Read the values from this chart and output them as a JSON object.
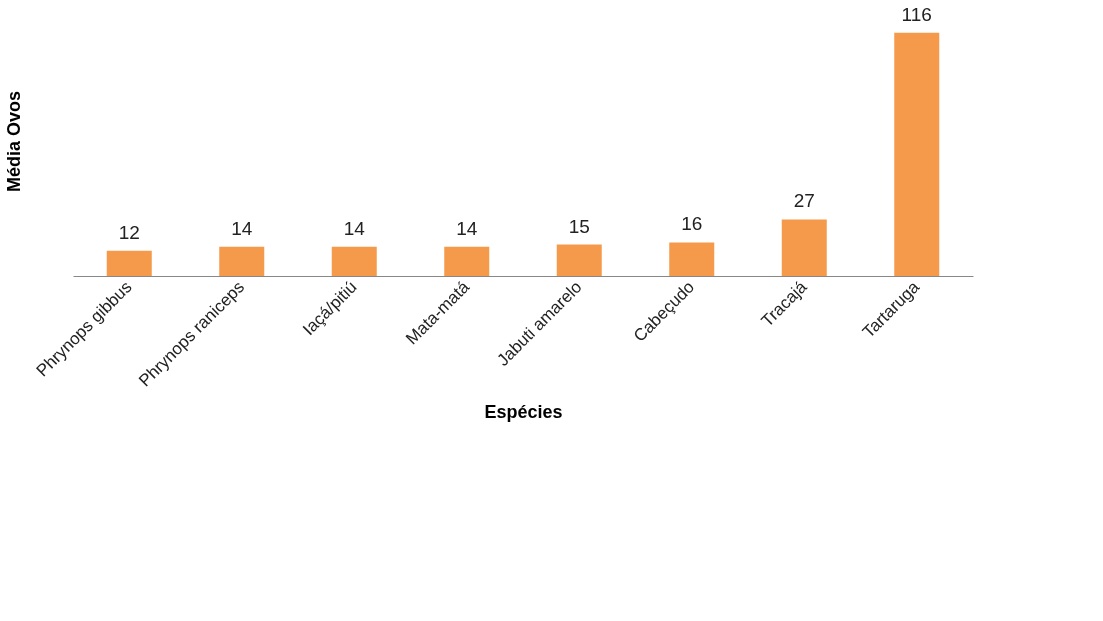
{
  "chart_data": {
    "type": "bar",
    "xlabel": "Espécies",
    "ylabel": "Média Ovos",
    "categories": [
      "Phrynops gibbus",
      "Phrynops raniceps",
      "Iaçá/pitiú",
      "Mata-matá",
      "Jabuti amarelo",
      "Cabeçudo",
      "Tracajá",
      "Tartaruga"
    ],
    "values": [
      12,
      14,
      14,
      14,
      15,
      16,
      27,
      116
    ],
    "color": "#f59a4a",
    "data_labels": true,
    "grid": false
  }
}
